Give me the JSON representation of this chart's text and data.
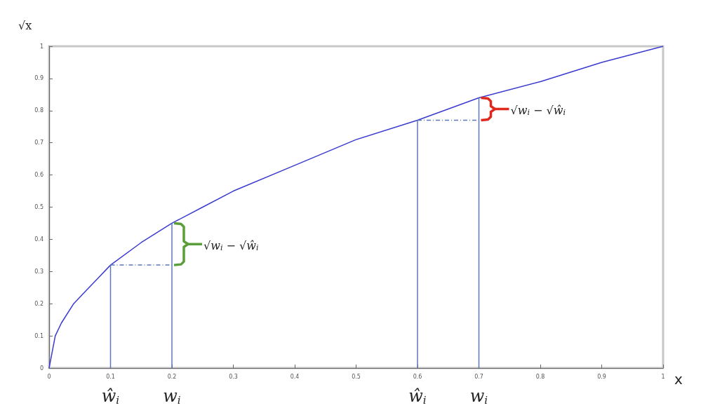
{
  "chart_data": {
    "type": "line",
    "xlabel": "x",
    "ylabel": "√x",
    "xlim": [
      0,
      1
    ],
    "ylim": [
      0,
      1
    ],
    "xticks": [
      0,
      0.1,
      0.2,
      0.3,
      0.4,
      0.5,
      0.6,
      0.7,
      0.8,
      0.9,
      1
    ],
    "yticks": [
      0,
      0.1,
      0.2,
      0.3,
      0.4,
      0.5,
      0.6,
      0.7,
      0.8,
      0.9,
      1
    ],
    "grid": false,
    "marker": "none",
    "series": [
      {
        "color": "#3a3ad0",
        "x": [
          0,
          0.01,
          0.02,
          0.04,
          0.06,
          0.08,
          0.1,
          0.15,
          0.2,
          0.25,
          0.3,
          0.4,
          0.5,
          0.6,
          0.7,
          0.8,
          0.9,
          1
        ],
        "values": [
          0,
          0.1,
          0.14,
          0.2,
          0.24,
          0.28,
          0.32,
          0.39,
          0.45,
          0.5,
          0.55,
          0.63,
          0.71,
          0.77,
          0.84,
          0.89,
          0.95,
          1
        ],
        "line_style": "solid"
      },
      {
        "color": "#5a78b8",
        "x": [
          0.1,
          0.1
        ],
        "values": [
          0,
          0.32
        ],
        "line_style": "solid"
      },
      {
        "color": "#5a78b8",
        "x": [
          0.2,
          0.2
        ],
        "values": [
          0,
          0.45
        ],
        "line_style": "solid"
      },
      {
        "color": "#5a78b8",
        "x": [
          0.1,
          0.2
        ],
        "values": [
          0.32,
          0.32
        ],
        "line_style": "dashed"
      },
      {
        "color": "#5a78b8",
        "x": [
          0.6,
          0.6
        ],
        "values": [
          0,
          0.77
        ],
        "line_style": "solid"
      },
      {
        "color": "#5a78b8",
        "x": [
          0.7,
          0.7
        ],
        "values": [
          0,
          0.84
        ],
        "line_style": "solid"
      },
      {
        "color": "#5a78b8",
        "x": [
          0.6,
          0.7
        ],
        "values": [
          0.77,
          0.77
        ],
        "line_style": "dashed"
      }
    ],
    "annotations": [
      {
        "text": "√w$_{i}$ − √ŵ$_{i}$",
        "x": 0.2,
        "y": 0.38
      },
      {
        "text": "√w$_{i}$ − √ŵ$_{i}$",
        "x": 0.7,
        "y": 0.8
      },
      "ŵ$_{i}$",
      "w$_{i}$",
      "ŵ$_{i}$",
      "w$_{i}$"
    ]
  }
}
